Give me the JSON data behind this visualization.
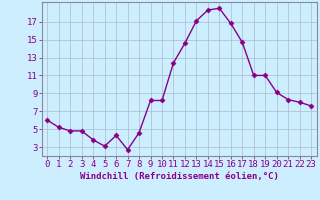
{
  "x": [
    0,
    1,
    2,
    3,
    4,
    5,
    6,
    7,
    8,
    9,
    10,
    11,
    12,
    13,
    14,
    15,
    16,
    17,
    18,
    19,
    20,
    21,
    22,
    23
  ],
  "y": [
    6.0,
    5.2,
    4.8,
    4.8,
    3.8,
    3.1,
    4.3,
    2.7,
    4.6,
    8.2,
    8.2,
    12.4,
    14.6,
    17.1,
    18.3,
    18.5,
    16.8,
    14.7,
    11.0,
    11.0,
    9.1,
    8.3,
    8.0,
    7.6
  ],
  "line_color": "#880088",
  "marker": "D",
  "marker_size": 2.5,
  "line_width": 1.0,
  "bg_color": "#cceeff",
  "grid_color": "#aabbcc",
  "xlabel": "Windchill (Refroidissement éolien,°C)",
  "xlabel_color": "#880088",
  "xlabel_fontsize": 6.5,
  "yticks": [
    3,
    5,
    7,
    9,
    11,
    13,
    15,
    17
  ],
  "xticks": [
    0,
    1,
    2,
    3,
    4,
    5,
    6,
    7,
    8,
    9,
    10,
    11,
    12,
    13,
    14,
    15,
    16,
    17,
    18,
    19,
    20,
    21,
    22,
    23
  ],
  "xlim": [
    -0.5,
    23.5
  ],
  "ylim": [
    2.0,
    19.2
  ],
  "tick_color": "#880088",
  "tick_fontsize": 6.5
}
